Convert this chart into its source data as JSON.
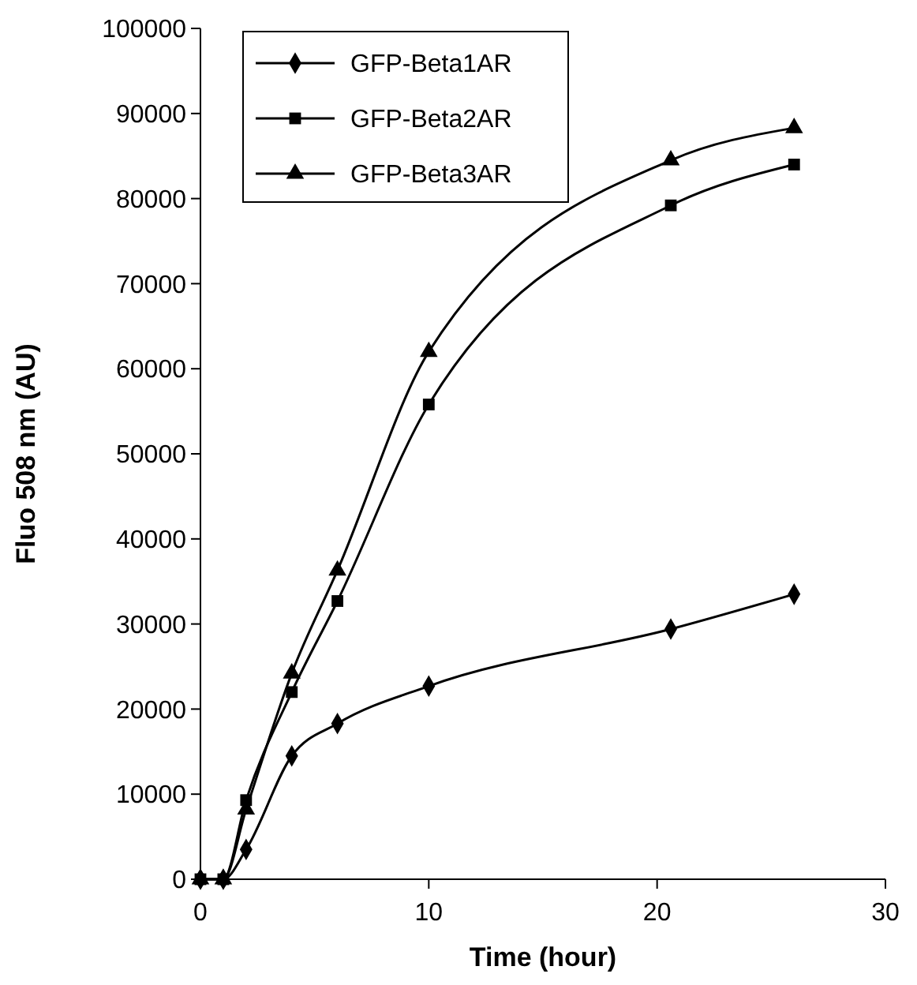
{
  "chart_data": {
    "type": "line",
    "xlabel": "Time (hour)",
    "ylabel": "Fluo 508 nm (AU)",
    "x": [
      0,
      1,
      2,
      4,
      6,
      10,
      20.6,
      26
    ],
    "series": [
      {
        "name": "GFP-Beta1AR",
        "color": "#000000",
        "marker": "diamond",
        "values": [
          0,
          0,
          3500,
          14500,
          18300,
          22700,
          29400,
          33500
        ]
      },
      {
        "name": "GFP-Beta2AR",
        "color": "#000000",
        "marker": "square",
        "values": [
          0,
          0,
          9300,
          22000,
          32700,
          55800,
          79200,
          84000
        ]
      },
      {
        "name": "GFP-Beta3AR",
        "color": "#000000",
        "marker": "triangle",
        "values": [
          0,
          0,
          8200,
          24200,
          36300,
          62000,
          84500,
          88300
        ]
      }
    ],
    "xlim": [
      0,
      30
    ],
    "xticks": [
      0,
      10,
      20,
      30
    ],
    "ylim": [
      0,
      100000
    ],
    "yticks": [
      0,
      10000,
      20000,
      30000,
      40000,
      50000,
      60000,
      70000,
      80000,
      90000,
      100000
    ],
    "grid": false,
    "legend": "top left",
    "line_style": "solid"
  }
}
